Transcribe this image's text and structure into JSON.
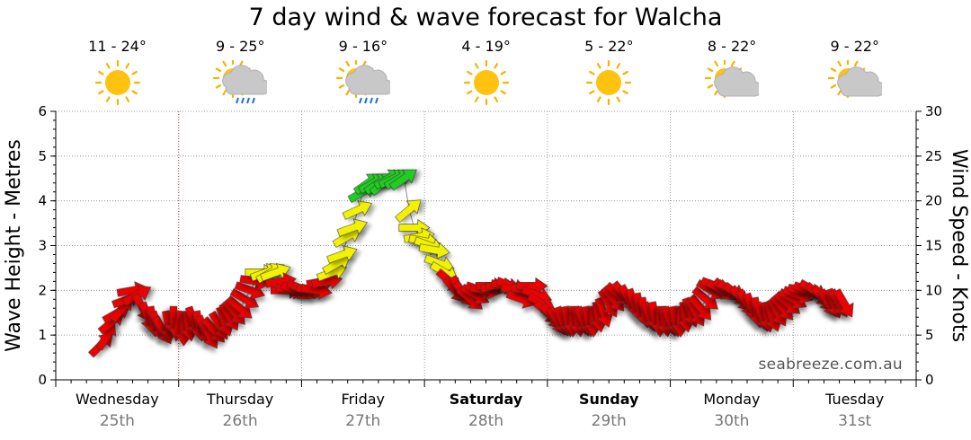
{
  "title": "7 day wind & wave forecast for Walcha",
  "watermark": "seabreeze.com.au",
  "forecast": [
    {
      "day": "Wednesday",
      "date": "25th",
      "temp": "11 - 24°",
      "icon": "sun-icon",
      "bold": false
    },
    {
      "day": "Thursday",
      "date": "26th",
      "temp": "9 - 25°",
      "icon": "sun-cloud-rain-icon",
      "bold": false
    },
    {
      "day": "Friday",
      "date": "27th",
      "temp": "9 - 16°",
      "icon": "sun-cloud-rain-icon",
      "bold": false
    },
    {
      "day": "Saturday",
      "date": "28th",
      "temp": "4 - 19°",
      "icon": "sun-icon",
      "bold": true
    },
    {
      "day": "Sunday",
      "date": "29th",
      "temp": "5 - 22°",
      "icon": "sun-icon",
      "bold": true
    },
    {
      "day": "Monday",
      "date": "30th",
      "temp": "8 - 22°",
      "icon": "sun-cloud-icon",
      "bold": false
    },
    {
      "day": "Tuesday",
      "date": "31st",
      "temp": "9 - 22°",
      "icon": "sun-cloud-icon",
      "bold": false
    }
  ],
  "chart_data": {
    "type": "line",
    "title": "7 day wind & wave forecast for Walcha",
    "ylabel_left": "Wave Height - Metres",
    "ylabel_right": "Wind Speed - Knots",
    "ylim_left": [
      0,
      6
    ],
    "ylim_right": [
      0,
      30
    ],
    "yticks_left": [
      "0",
      "1",
      "2",
      "3",
      "4",
      "5",
      "6"
    ],
    "yticks_right": [
      "0",
      "5",
      "10",
      "15",
      "20",
      "25",
      "30"
    ],
    "x_unit": "hours from Wednesday 00:00",
    "x_range": [
      0,
      168
    ],
    "now_marker_hour": 24,
    "grid": true,
    "colors": {
      "low": "#ee0000",
      "moderate": "#f2f200",
      "strong": "#22cc22"
    },
    "series": [
      {
        "name": "Wind Speed - Knots",
        "points": [
          [
            9,
            4,
            45
          ],
          [
            10,
            5,
            30
          ],
          [
            11,
            6.5,
            50
          ],
          [
            12,
            7.5,
            60
          ],
          [
            13,
            8,
            40
          ],
          [
            14,
            9,
            70
          ],
          [
            15,
            10,
            80
          ],
          [
            16,
            9.5,
            60
          ],
          [
            17,
            8,
            150
          ],
          [
            18,
            7,
            160
          ],
          [
            19,
            6.5,
            170
          ],
          [
            20,
            6,
            160
          ],
          [
            21,
            5.5,
            150
          ],
          [
            22,
            6,
            170
          ],
          [
            23,
            6.5,
            180
          ],
          [
            24,
            6,
            190
          ],
          [
            25,
            5.5,
            180
          ],
          [
            26,
            6,
            170
          ],
          [
            27,
            6.5,
            160
          ],
          [
            28,
            6,
            170
          ],
          [
            29,
            5.5,
            160
          ],
          [
            30,
            5,
            150
          ],
          [
            31,
            5.5,
            140
          ],
          [
            32,
            6,
            150
          ],
          [
            33,
            6.5,
            160
          ],
          [
            34,
            7,
            150
          ],
          [
            35,
            7.5,
            140
          ],
          [
            36,
            8,
            130
          ],
          [
            37,
            9,
            120
          ],
          [
            38,
            10,
            110
          ],
          [
            39,
            11,
            100
          ],
          [
            40,
            12,
            90
          ],
          [
            41,
            12,
            70
          ],
          [
            42,
            12,
            60
          ],
          [
            43,
            12,
            70
          ],
          [
            44,
            11,
            80
          ],
          [
            45,
            10,
            90
          ],
          [
            46,
            10,
            100
          ],
          [
            47,
            10,
            110
          ],
          [
            48,
            10,
            120
          ],
          [
            49,
            10,
            110
          ],
          [
            50,
            10,
            100
          ],
          [
            51,
            10,
            100
          ],
          [
            52,
            11,
            80
          ],
          [
            53,
            11,
            80
          ],
          [
            54,
            12,
            70
          ],
          [
            55,
            13,
            60
          ],
          [
            56,
            14,
            70
          ],
          [
            57,
            16,
            60
          ],
          [
            58,
            17,
            70
          ],
          [
            59,
            19,
            65
          ],
          [
            60,
            21,
            60
          ],
          [
            61,
            22,
            55
          ],
          [
            62,
            22,
            60
          ],
          [
            63,
            22,
            55
          ],
          [
            64,
            22,
            50
          ],
          [
            65,
            22.5,
            60
          ],
          [
            66,
            22.5,
            65
          ],
          [
            67,
            22.5,
            60
          ],
          [
            68,
            22.5,
            55
          ],
          [
            69,
            19,
            50
          ],
          [
            70,
            17,
            90
          ],
          [
            71,
            16,
            80
          ],
          [
            72,
            15.5,
            100
          ],
          [
            73,
            15,
            110
          ],
          [
            74,
            14.5,
            100
          ],
          [
            75,
            13,
            110
          ],
          [
            76,
            12,
            120
          ],
          [
            77,
            11,
            130
          ],
          [
            78,
            10,
            140
          ],
          [
            79,
            10,
            150
          ],
          [
            80,
            9.5,
            140
          ],
          [
            81,
            9,
            130
          ],
          [
            82,
            9.5,
            120
          ],
          [
            83,
            10,
            110
          ],
          [
            84,
            10,
            100
          ],
          [
            85,
            10.5,
            90
          ],
          [
            86,
            10.5,
            80
          ],
          [
            87,
            10.5,
            90
          ],
          [
            88,
            10.5,
            100
          ],
          [
            89,
            10.5,
            110
          ],
          [
            90,
            10,
            100
          ],
          [
            91,
            9,
            110
          ],
          [
            92,
            10,
            100
          ],
          [
            93,
            10.5,
            90
          ],
          [
            94,
            9.5,
            110
          ],
          [
            95,
            8.5,
            120
          ],
          [
            96,
            7.5,
            130
          ],
          [
            97,
            7,
            140
          ],
          [
            98,
            6.5,
            150
          ],
          [
            99,
            6.5,
            160
          ],
          [
            100,
            6.5,
            170
          ],
          [
            101,
            6.5,
            180
          ],
          [
            102,
            6.5,
            170
          ],
          [
            103,
            6.5,
            160
          ],
          [
            104,
            6.5,
            170
          ],
          [
            105,
            6.5,
            180
          ],
          [
            106,
            7,
            170
          ],
          [
            107,
            7.5,
            160
          ],
          [
            108,
            8.5,
            150
          ],
          [
            109,
            9,
            140
          ],
          [
            110,
            9.5,
            130
          ],
          [
            111,
            9.5,
            140
          ],
          [
            112,
            9,
            150
          ],
          [
            113,
            8.5,
            160
          ],
          [
            114,
            8,
            170
          ],
          [
            115,
            7.5,
            170
          ],
          [
            116,
            7,
            160
          ],
          [
            117,
            7,
            170
          ],
          [
            118,
            6.5,
            180
          ],
          [
            119,
            6.5,
            170
          ],
          [
            120,
            6.5,
            160
          ],
          [
            121,
            6.5,
            170
          ],
          [
            122,
            6.5,
            180
          ],
          [
            123,
            7,
            170
          ],
          [
            124,
            7.5,
            160
          ],
          [
            125,
            7.5,
            150
          ],
          [
            126,
            8,
            140
          ],
          [
            127,
            9,
            130
          ],
          [
            128,
            10,
            120
          ],
          [
            129,
            10.5,
            110
          ],
          [
            130,
            10,
            120
          ],
          [
            131,
            10,
            130
          ],
          [
            132,
            10,
            120
          ],
          [
            133,
            9.5,
            130
          ],
          [
            134,
            9,
            140
          ],
          [
            135,
            8.5,
            150
          ],
          [
            136,
            8,
            160
          ],
          [
            137,
            7.5,
            170
          ],
          [
            138,
            7,
            160
          ],
          [
            139,
            7,
            170
          ],
          [
            140,
            7,
            160
          ],
          [
            141,
            7.5,
            150
          ],
          [
            142,
            8,
            140
          ],
          [
            143,
            8.5,
            130
          ],
          [
            144,
            9,
            120
          ],
          [
            145,
            9.5,
            110
          ],
          [
            146,
            10,
            100
          ],
          [
            147,
            10,
            110
          ],
          [
            148,
            10,
            120
          ],
          [
            149,
            9.5,
            130
          ],
          [
            150,
            9,
            140
          ],
          [
            151,
            8.5,
            150
          ],
          [
            152,
            8.5,
            160
          ],
          [
            153,
            8.5,
            150
          ],
          [
            154,
            8.5,
            150
          ]
        ]
      }
    ]
  }
}
